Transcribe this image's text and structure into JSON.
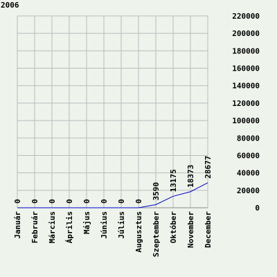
{
  "chart_data": {
    "type": "line",
    "title": "2006",
    "categories": [
      "Január",
      "Február",
      "Március",
      "Április",
      "Május",
      "Június",
      "Július",
      "Augusztus",
      "Szeptember",
      "Október",
      "November",
      "December"
    ],
    "series": [
      {
        "name": "2006",
        "color": "#0000cc",
        "values": [
          0,
          0,
          0,
          0,
          0,
          0,
          0,
          0,
          3590,
          13175,
          18373,
          28677
        ]
      }
    ],
    "ylim": [
      0,
      220000
    ],
    "yticks": [
      0,
      20000,
      40000,
      60000,
      80000,
      100000,
      120000,
      140000,
      160000,
      180000,
      200000,
      220000
    ],
    "grid": true
  }
}
